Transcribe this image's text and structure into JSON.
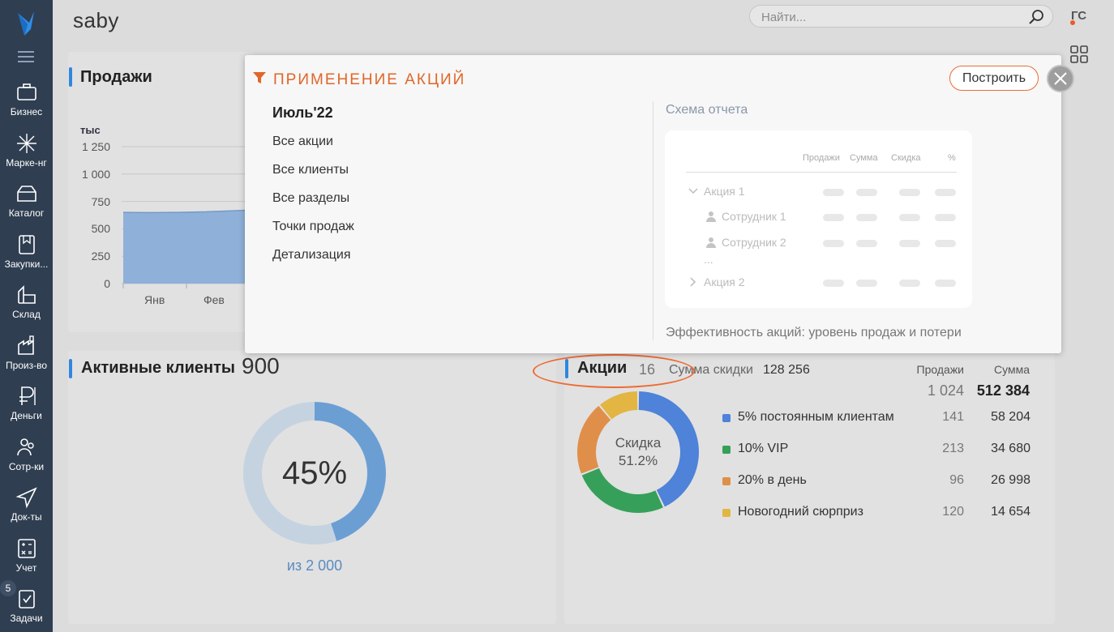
{
  "app": {
    "brand": "saby",
    "user_initials": "ГС"
  },
  "search": {
    "placeholder": "Найти..."
  },
  "sidebar": {
    "items": [
      {
        "label": "Бизнес",
        "icon": "briefcase-icon"
      },
      {
        "label": "Марке-нг",
        "icon": "sparkle-icon"
      },
      {
        "label": "Каталог",
        "icon": "catalog-box-icon"
      },
      {
        "label": "Закупки...",
        "icon": "purchases-icon"
      },
      {
        "label": "Склад",
        "icon": "warehouse-icon"
      },
      {
        "label": "Произ-во",
        "icon": "factory-icon"
      },
      {
        "label": "Деньги",
        "icon": "ruble-icon"
      },
      {
        "label": "Сотр-ки",
        "icon": "people-icon"
      },
      {
        "label": "Док-ты",
        "icon": "paper-plane-icon"
      },
      {
        "label": "Учет",
        "icon": "calculator-icon"
      },
      {
        "label": "Задачи",
        "icon": "tasks-icon"
      }
    ],
    "tasks_badge": "5"
  },
  "sales_panel": {
    "title": "Продажи",
    "chart_data": {
      "type": "area",
      "ylabel": "тыс",
      "y_ticks": [
        "1 250",
        "1 000",
        "750",
        "500",
        "250",
        "0"
      ],
      "ylim": [
        0,
        1250
      ],
      "categories": [
        "Янв",
        "Фев"
      ],
      "values": [
        650,
        670
      ],
      "grid": true,
      "color": "#8fb0d8"
    }
  },
  "clients_panel": {
    "title": "Активные клиенты",
    "count": "900",
    "percent_label": "45%",
    "total_label": "из 2 000",
    "active_fraction": 0.45,
    "active_color": "#6b9fd4",
    "rest_color": "#c5d3e1"
  },
  "promo_panel": {
    "title": "Акции",
    "count": "16",
    "discount_sum_label": "Сумма скидки",
    "discount_sum_value": "128 256",
    "col_sales": "Продажи",
    "col_sum": "Сумма",
    "total_sales": "1 024",
    "total_sum": "512 384",
    "center_label": "Скидка",
    "center_value": "51.2%",
    "chart_data": {
      "type": "pie",
      "categories": [
        "5% постоянным клиентам",
        "10% VIP",
        "20% в день",
        "Новогодний сюрприз"
      ],
      "sales": [
        141,
        213,
        96,
        120
      ],
      "sums": [
        58204,
        34680,
        26998,
        14654
      ],
      "colors": [
        "#4f82d9",
        "#36a05a",
        "#e08f4a",
        "#e3b542"
      ],
      "slice_values": [
        0.43,
        0.26,
        0.2,
        0.11
      ]
    },
    "rows": [
      {
        "name": "5% постоянным клиентам",
        "sales": "141",
        "sum": "58 204"
      },
      {
        "name": "10% VIP",
        "sales": "213",
        "sum": "34 680"
      },
      {
        "name": "20% в день",
        "sales": "96",
        "sum": "26 998"
      },
      {
        "name": "Новогодний сюрприз",
        "sales": "120",
        "sum": "14 654"
      }
    ]
  },
  "popup": {
    "title": "ПРИМЕНЕНИЕ АКЦИЙ",
    "build_label": "Построить",
    "filters": [
      "Июль'22",
      "Все акции",
      "Все клиенты",
      "Все разделы",
      "Точки продаж",
      "Детализация"
    ],
    "scheme_title": "Схема отчета",
    "scheme_headers": [
      "Продажи",
      "Сумма",
      "Скидка",
      "%"
    ],
    "scheme_rows": [
      "Акция 1",
      "Сотрудник 1",
      "Сотрудник 2",
      "...",
      "Акция 2"
    ],
    "scheme_description": "Эффективность акций: уровень продаж и потери"
  }
}
